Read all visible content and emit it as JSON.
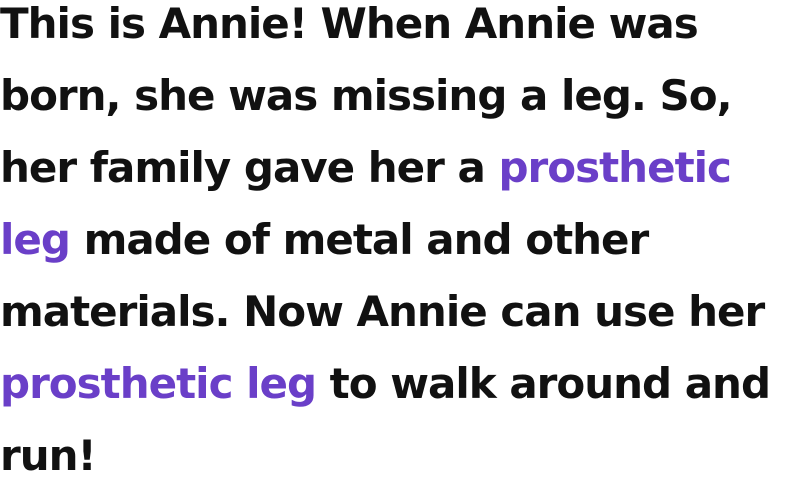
{
  "colors": {
    "text": "#111111",
    "highlight": "#6a3fc8",
    "background": "#ffffff"
  },
  "story": {
    "lines": [
      {
        "text": "This is Annie! When Annie was"
      },
      {
        "text": "born, she was missing a leg. So,"
      },
      {
        "before": "her family gave her a ",
        "highlight": "prosthetic"
      },
      {
        "highlight": "leg",
        "after": " made of metal and other"
      },
      {
        "text": "materials. Now Annie can use her"
      },
      {
        "highlight": "prosthetic leg",
        "after": " to walk around and"
      },
      {
        "text": "run!"
      }
    ]
  }
}
